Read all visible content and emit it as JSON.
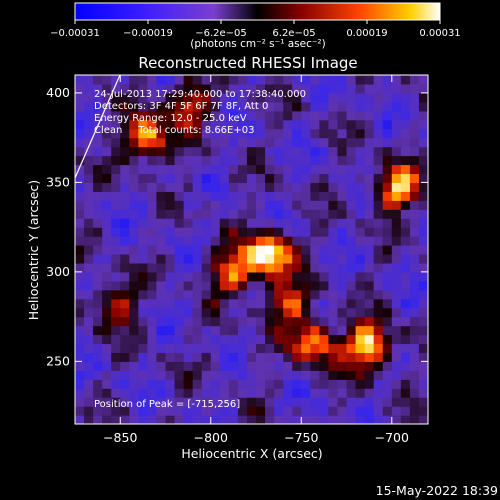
{
  "chart_data": {
    "type": "heatmap",
    "title": "Reconstructed RHESSI Image",
    "xlabel": "Heliocentric X (arcsec)",
    "ylabel": "Heliocentric Y (arcsec)",
    "xlim": [
      -875,
      -680
    ],
    "ylim": [
      215,
      410
    ],
    "x_ticks": [
      -850,
      -800,
      -750,
      -700
    ],
    "x_tick_labels": [
      "−850",
      "−800",
      "−750",
      "−700"
    ],
    "y_ticks": [
      250,
      300,
      350,
      400
    ],
    "y_tick_labels": [
      "250",
      "300",
      "350",
      "400"
    ],
    "colorbar": {
      "range": [
        -0.00031,
        0.00031
      ],
      "tick_labels": [
        "−0.00031",
        "−0.00019",
        "−6.2e−05",
        "6.2e−05",
        "0.00019",
        "0.00031"
      ],
      "units_text": "(photons cm⁻² s⁻¹ asec⁻²)",
      "colormap": "blue-purple-red-yellow-white"
    },
    "annotations": [
      "24-Jul-2013 17:29:40.000 to 17:38:40.000",
      "Detectors: 3F 4F 5F 6F 7F 8F, Att 0",
      "Energy Range: 12.0 - 25.0 keV",
      "Clean     Total counts: 8.66E+03"
    ],
    "peak_label": "Position of Peak = [-715,256]",
    "peak_position": [
      -715,
      256
    ],
    "hotspots": [
      {
        "x": -770,
        "y": 308,
        "value": 0.00031
      },
      {
        "x": -715,
        "y": 256,
        "value": 0.00031
      },
      {
        "x": -838,
        "y": 372,
        "value": 0.00028
      },
      {
        "x": -700,
        "y": 345,
        "value": 0.00027
      },
      {
        "x": -745,
        "y": 258,
        "value": 0.00024
      },
      {
        "x": -790,
        "y": 298,
        "value": 0.00022
      },
      {
        "x": -815,
        "y": 392,
        "value": 0.0002
      },
      {
        "x": -760,
        "y": 280,
        "value": 0.0002
      },
      {
        "x": -855,
        "y": 280,
        "value": 0.00018
      }
    ],
    "colors": {
      "background": "#000000",
      "low": "#0000ff",
      "mid": "#7a3fd0",
      "high": "#ff2a00",
      "peak": "#ffffff"
    }
  },
  "footer": {
    "timestamp": "15-May-2022 18:39"
  }
}
